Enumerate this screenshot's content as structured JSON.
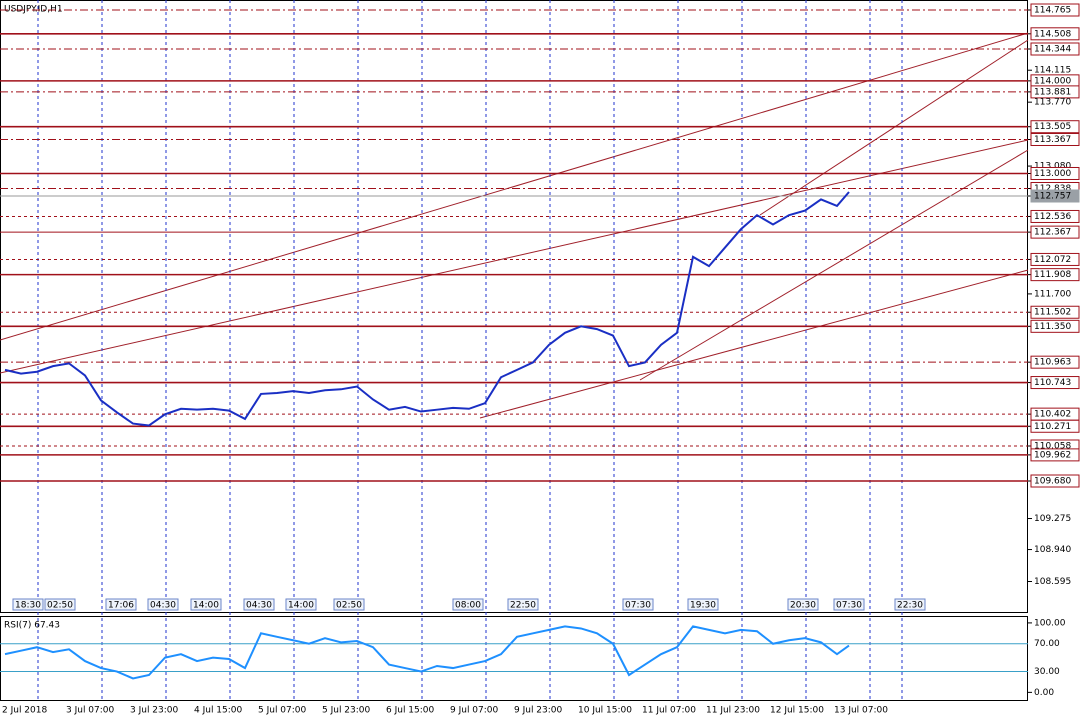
{
  "chart_data": {
    "type": "line",
    "title": "USDJPY.ID,H1",
    "x_labels": [
      "2 Jul 2018",
      "3 Jul 07:00",
      "3 Jul 23:00",
      "4 Jul 15:00",
      "5 Jul 07:00",
      "5 Jul 23:00",
      "6 Jul 15:00",
      "9 Jul 07:00",
      "9 Jul 23:00",
      "10 Jul 15:00",
      "11 Jul 07:00",
      "11 Jul 23:00",
      "12 Jul 15:00",
      "13 Jul 07:00"
    ],
    "series": [
      {
        "name": "USDJPY.ID",
        "color": "#1a2fc4",
        "values": [
          110.88,
          110.84,
          110.86,
          110.92,
          110.95,
          110.82,
          110.55,
          110.42,
          110.3,
          110.28,
          110.4,
          110.46,
          110.45,
          110.46,
          110.44,
          110.35,
          110.62,
          110.63,
          110.65,
          110.63,
          110.66,
          110.67,
          110.7,
          110.56,
          110.45,
          110.48,
          110.43,
          110.45,
          110.47,
          110.46,
          110.52,
          110.8,
          110.88,
          110.96,
          111.15,
          111.28,
          111.35,
          111.32,
          111.25,
          110.92,
          110.96,
          111.15,
          111.28,
          112.1,
          112.0,
          112.2,
          112.4,
          112.55,
          112.45,
          112.55,
          112.6,
          112.72,
          112.65,
          112.8
        ]
      }
    ],
    "ylim": [
      108.255,
      114.873
    ],
    "yticks": [
      {
        "value": 114.765,
        "label": "114.765"
      },
      {
        "value": 114.508,
        "label": "114.508"
      },
      {
        "value": 114.344,
        "label": "114.344"
      },
      {
        "value": 114.115,
        "label": "114.115"
      },
      {
        "value": 114,
        "label": "114.000"
      },
      {
        "value": 113.881,
        "label": "113.881"
      },
      {
        "value": 113.77,
        "label": "113.770"
      },
      {
        "value": 113.505,
        "label": "113.505"
      },
      {
        "value": 113.367,
        "label": "113.367"
      },
      {
        "value": 113.08,
        "label": "113.080"
      },
      {
        "value": 113,
        "label": "113.000"
      },
      {
        "value": 112.838,
        "label": "112.838"
      },
      {
        "value": 112.757,
        "label": "112.757"
      },
      {
        "value": 112.536,
        "label": "112.536"
      },
      {
        "value": 112.367,
        "label": "112.367"
      },
      {
        "value": 112.072,
        "label": "112.072"
      },
      {
        "value": 111.908,
        "label": "111.908"
      },
      {
        "value": 111.7,
        "label": "111.700"
      },
      {
        "value": 111.502,
        "label": "111.502"
      },
      {
        "value": 111.35,
        "label": "111.350"
      },
      {
        "value": 110.963,
        "label": "110.963"
      },
      {
        "value": 110.743,
        "label": "110.743"
      },
      {
        "value": 110.402,
        "label": "110.402"
      },
      {
        "value": 110.271,
        "label": "110.271"
      },
      {
        "value": 110.058,
        "label": "110.058"
      },
      {
        "value": 109.962,
        "label": "109.962"
      },
      {
        "value": 109.68,
        "label": "109.680"
      },
      {
        "value": 109.275,
        "label": "109.275"
      },
      {
        "value": 108.94,
        "label": "108.940"
      },
      {
        "value": 108.595,
        "label": "108.595"
      }
    ],
    "current_price": 112.757,
    "levels": [
      {
        "value": 114.765,
        "style": "dashdot"
      },
      {
        "value": 114.508,
        "style": "solid"
      },
      {
        "value": 114.344,
        "style": "dashdot"
      },
      {
        "value": 114,
        "style": "solid"
      },
      {
        "value": 113.881,
        "style": "dashdot"
      },
      {
        "value": 113.505,
        "style": "solid"
      },
      {
        "value": 113.367,
        "style": "dashdot"
      },
      {
        "value": 113,
        "style": "solid"
      },
      {
        "value": 112.838,
        "style": "dashdot"
      },
      {
        "value": 112.536,
        "style": "dashed"
      },
      {
        "value": 112.367,
        "style": "thin"
      },
      {
        "value": 112.072,
        "style": "dashed"
      },
      {
        "value": 111.908,
        "style": "solid"
      },
      {
        "value": 111.502,
        "style": "dashed"
      },
      {
        "value": 111.35,
        "style": "solid"
      },
      {
        "value": 110.963,
        "style": "dashdot"
      },
      {
        "value": 110.743,
        "style": "solid"
      },
      {
        "value": 110.402,
        "style": "dashed"
      },
      {
        "value": 110.271,
        "style": "solid"
      },
      {
        "value": 110.058,
        "style": "dashed"
      },
      {
        "value": 109.962,
        "style": "solid"
      },
      {
        "value": 109.68,
        "style": "solid"
      }
    ],
    "time_tags": [
      "18:30",
      "02:50",
      "17:06",
      "04:30",
      "14:00",
      "04:30",
      "14:00",
      "02:50",
      "08:00",
      "22:50",
      "07:30",
      "19:30",
      "20:30",
      "07:30",
      "22:30"
    ],
    "rsi": {
      "label": "RSI(7) 67.43",
      "color": "#1e90ff",
      "ylim": [
        -11,
        108.5
      ],
      "yticks": [
        {
          "value": 100,
          "label": "100.00"
        },
        {
          "value": 70,
          "label": "70.00"
        },
        {
          "value": 30,
          "label": "30.00"
        },
        {
          "value": 0,
          "label": "0.00"
        }
      ],
      "values": [
        55,
        60,
        65,
        58,
        62,
        45,
        35,
        30,
        20,
        25,
        50,
        55,
        45,
        50,
        48,
        35,
        85,
        80,
        75,
        70,
        78,
        72,
        74,
        65,
        40,
        35,
        30,
        38,
        35,
        40,
        45,
        55,
        80,
        85,
        90,
        95,
        92,
        85,
        70,
        25,
        40,
        55,
        65,
        95,
        90,
        85,
        90,
        88,
        70,
        75,
        78,
        72,
        55,
        67.43
      ]
    }
  }
}
